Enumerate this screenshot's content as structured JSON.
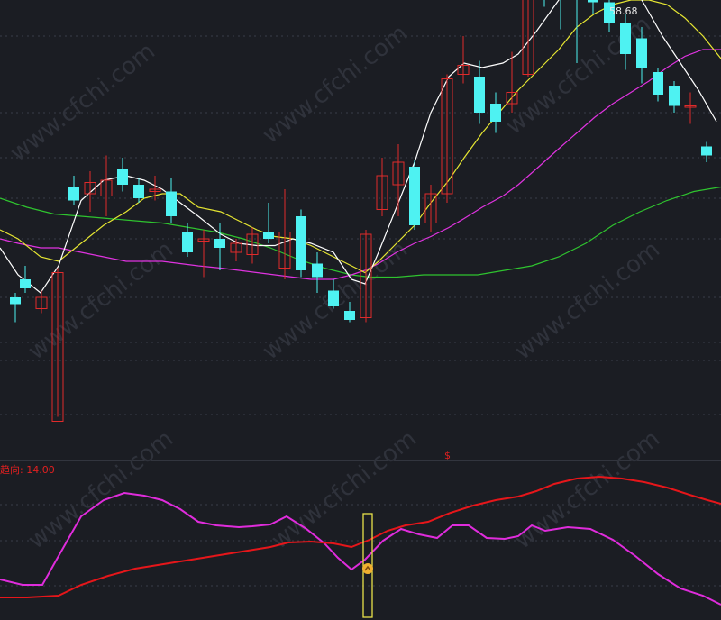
{
  "chart_data": [
    {
      "type": "candlestick",
      "max_label": "58.68",
      "colors": {
        "up": "#e02b2b",
        "down": "#4ef2f2",
        "ma5": "#ffffff",
        "ma10": "#e6e632",
        "ma20": "#e033e0",
        "ma60": "#2fc42f"
      },
      "candles": [
        [
          17,
          20,
          17,
          9,
          22
        ],
        [
          28,
          28,
          24,
          22,
          34
        ],
        [
          46,
          15,
          20,
          13,
          23
        ],
        [
          64,
          -35,
          31,
          -33,
          33
        ],
        [
          82,
          69,
          63,
          61,
          74
        ],
        [
          100,
          66,
          71,
          58,
          76
        ],
        [
          118,
          65,
          72,
          56,
          83
        ],
        [
          136,
          77,
          70,
          67,
          82
        ],
        [
          154,
          70,
          64,
          62,
          73
        ],
        [
          172,
          67,
          68,
          63,
          74
        ],
        [
          190,
          67,
          56,
          53,
          73
        ],
        [
          208,
          49,
          40,
          38,
          53
        ],
        [
          226,
          45,
          46,
          29,
          50
        ],
        [
          244,
          46,
          42,
          32,
          53
        ],
        [
          262,
          40,
          44,
          36,
          46
        ],
        [
          280,
          39,
          48,
          35,
          51
        ],
        [
          298,
          49,
          46,
          44,
          62
        ],
        [
          316,
          33,
          49,
          28,
          68
        ],
        [
          334,
          56,
          32,
          29,
          59
        ],
        [
          352,
          35,
          29,
          22,
          40
        ],
        [
          370,
          23,
          16,
          15,
          28
        ],
        [
          388,
          14,
          10,
          9,
          18
        ],
        [
          406,
          11,
          48,
          9,
          50
        ],
        [
          424,
          59,
          74,
          56,
          82
        ],
        [
          442,
          70,
          80,
          56,
          88
        ],
        [
          460,
          78,
          52,
          50,
          81
        ],
        [
          478,
          53,
          66,
          49,
          70
        ],
        [
          496,
          66,
          117,
          62,
          119
        ],
        [
          514,
          119,
          123,
          115,
          136
        ],
        [
          532,
          118,
          102,
          97,
          125
        ],
        [
          550,
          106,
          98,
          93,
          111
        ],
        [
          568,
          106,
          111,
          102,
          129
        ],
        [
          586,
          119,
          158,
          118,
          163
        ],
        [
          604,
          154,
          152,
          149,
          170
        ],
        [
          622,
          166,
          159,
          139,
          180
        ],
        [
          640,
          153,
          152,
          124,
          159
        ],
        [
          658,
          160,
          151,
          146,
          187
        ],
        [
          676,
          151,
          142,
          138,
          155
        ],
        [
          694,
          142,
          128,
          121,
          146
        ],
        [
          712,
          135,
          122,
          115,
          140
        ],
        [
          730,
          120,
          110,
          107,
          122
        ],
        [
          748,
          114,
          105,
          102,
          116
        ],
        [
          766,
          105,
          105,
          97,
          111
        ],
        [
          784,
          87,
          83,
          80,
          89
        ]
      ],
      "ma5": [
        [
          0,
          42
        ],
        [
          20,
          30
        ],
        [
          45,
          22
        ],
        [
          65,
          34
        ],
        [
          90,
          63
        ],
        [
          115,
          72
        ],
        [
          140,
          74
        ],
        [
          160,
          72
        ],
        [
          180,
          68
        ],
        [
          200,
          62
        ],
        [
          220,
          56
        ],
        [
          245,
          48
        ],
        [
          265,
          44
        ],
        [
          285,
          43
        ],
        [
          305,
          43
        ],
        [
          325,
          46
        ],
        [
          345,
          44
        ],
        [
          370,
          40
        ],
        [
          390,
          28
        ],
        [
          405,
          26
        ],
        [
          420,
          40
        ],
        [
          440,
          60
        ],
        [
          460,
          80
        ],
        [
          478,
          102
        ],
        [
          498,
          118
        ],
        [
          515,
          124
        ],
        [
          535,
          122
        ],
        [
          558,
          124
        ],
        [
          575,
          128
        ],
        [
          595,
          138
        ],
        [
          620,
          152
        ],
        [
          640,
          162
        ],
        [
          660,
          168
        ],
        [
          680,
          166
        ],
        [
          700,
          160
        ],
        [
          715,
          150
        ],
        [
          735,
          136
        ],
        [
          755,
          124
        ],
        [
          775,
          112
        ],
        [
          795,
          98
        ]
      ],
      "ma10": [
        [
          0,
          50
        ],
        [
          20,
          46
        ],
        [
          45,
          38
        ],
        [
          65,
          36
        ],
        [
          90,
          44
        ],
        [
          115,
          52
        ],
        [
          140,
          58
        ],
        [
          160,
          64
        ],
        [
          180,
          66
        ],
        [
          200,
          66
        ],
        [
          220,
          60
        ],
        [
          245,
          58
        ],
        [
          265,
          54
        ],
        [
          285,
          50
        ],
        [
          305,
          47
        ],
        [
          325,
          46
        ],
        [
          345,
          43
        ],
        [
          370,
          38
        ],
        [
          390,
          34
        ],
        [
          405,
          31
        ],
        [
          420,
          36
        ],
        [
          440,
          44
        ],
        [
          460,
          52
        ],
        [
          478,
          62
        ],
        [
          498,
          72
        ],
        [
          515,
          82
        ],
        [
          535,
          93
        ],
        [
          558,
          104
        ],
        [
          575,
          112
        ],
        [
          595,
          120
        ],
        [
          620,
          130
        ],
        [
          640,
          140
        ],
        [
          660,
          146
        ],
        [
          680,
          150
        ],
        [
          700,
          152
        ],
        [
          720,
          152
        ],
        [
          740,
          150
        ],
        [
          760,
          144
        ],
        [
          780,
          136
        ],
        [
          800,
          126
        ]
      ],
      "ma20": [
        [
          0,
          46
        ],
        [
          20,
          44
        ],
        [
          45,
          42
        ],
        [
          65,
          42
        ],
        [
          90,
          40
        ],
        [
          115,
          38
        ],
        [
          140,
          36
        ],
        [
          160,
          36
        ],
        [
          180,
          36
        ],
        [
          200,
          35
        ],
        [
          220,
          34
        ],
        [
          245,
          33
        ],
        [
          265,
          32
        ],
        [
          285,
          31
        ],
        [
          305,
          30
        ],
        [
          325,
          29
        ],
        [
          345,
          28
        ],
        [
          370,
          28
        ],
        [
          390,
          30
        ],
        [
          405,
          32
        ],
        [
          420,
          35
        ],
        [
          440,
          40
        ],
        [
          460,
          44
        ],
        [
          478,
          47
        ],
        [
          498,
          51
        ],
        [
          515,
          55
        ],
        [
          535,
          60
        ],
        [
          558,
          65
        ],
        [
          575,
          70
        ],
        [
          595,
          77
        ],
        [
          620,
          86
        ],
        [
          640,
          93
        ],
        [
          660,
          100
        ],
        [
          680,
          106
        ],
        [
          700,
          111
        ],
        [
          720,
          116
        ],
        [
          740,
          122
        ],
        [
          760,
          127
        ],
        [
          780,
          130
        ],
        [
          800,
          130
        ]
      ],
      "ma60": [
        [
          0,
          64
        ],
        [
          30,
          60
        ],
        [
          60,
          57
        ],
        [
          90,
          56
        ],
        [
          120,
          55
        ],
        [
          150,
          54
        ],
        [
          180,
          53
        ],
        [
          210,
          51
        ],
        [
          240,
          49
        ],
        [
          270,
          46
        ],
        [
          300,
          42
        ],
        [
          330,
          37
        ],
        [
          360,
          33
        ],
        [
          390,
          30
        ],
        [
          410,
          29
        ],
        [
          440,
          29
        ],
        [
          470,
          30
        ],
        [
          500,
          30
        ],
        [
          530,
          30
        ],
        [
          560,
          32
        ],
        [
          590,
          34
        ],
        [
          620,
          38
        ],
        [
          650,
          44
        ],
        [
          680,
          52
        ],
        [
          710,
          58
        ],
        [
          740,
          63
        ],
        [
          770,
          67
        ],
        [
          800,
          69
        ]
      ]
    },
    {
      "type": "line",
      "title": "趋向: 14.00",
      "series": [
        {
          "color": "#e02cdc",
          "values": [
            [
              0,
              12
            ],
            [
              25,
              6
            ],
            [
              47,
              6
            ],
            [
              65,
              38
            ],
            [
              90,
              82
            ],
            [
              115,
              100
            ],
            [
              138,
              108
            ],
            [
              160,
              105
            ],
            [
              180,
              100
            ],
            [
              200,
              90
            ],
            [
              220,
              76
            ],
            [
              240,
              72
            ],
            [
              265,
              70
            ],
            [
              280,
              71
            ],
            [
              300,
              73
            ],
            [
              318,
              82
            ],
            [
              340,
              68
            ],
            [
              360,
              52
            ],
            [
              375,
              36
            ],
            [
              390,
              23
            ],
            [
              405,
              34
            ],
            [
              425,
              55
            ],
            [
              445,
              68
            ],
            [
              465,
              62
            ],
            [
              485,
              58
            ],
            [
              502,
              72
            ],
            [
              520,
              72
            ],
            [
              540,
              58
            ],
            [
              560,
              57
            ],
            [
              575,
              60
            ],
            [
              590,
              72
            ],
            [
              605,
              66
            ],
            [
              630,
              70
            ],
            [
              655,
              68
            ],
            [
              680,
              56
            ],
            [
              705,
              38
            ],
            [
              730,
              18
            ],
            [
              755,
              2
            ],
            [
              780,
              -6
            ],
            [
              800,
              -16
            ]
          ]
        },
        {
          "color": "#e6161a",
          "values": [
            [
              0,
              -8
            ],
            [
              30,
              -8
            ],
            [
              65,
              -6
            ],
            [
              90,
              6
            ],
            [
              120,
              16
            ],
            [
              150,
              24
            ],
            [
              175,
              28
            ],
            [
              200,
              32
            ],
            [
              225,
              36
            ],
            [
              250,
              40
            ],
            [
              275,
              44
            ],
            [
              300,
              48
            ],
            [
              320,
              53
            ],
            [
              345,
              54
            ],
            [
              370,
              52
            ],
            [
              390,
              48
            ],
            [
              410,
              56
            ],
            [
              430,
              66
            ],
            [
              450,
              72
            ],
            [
              475,
              76
            ],
            [
              500,
              86
            ],
            [
              525,
              94
            ],
            [
              550,
              100
            ],
            [
              575,
              104
            ],
            [
              595,
              110
            ],
            [
              615,
              118
            ],
            [
              640,
              124
            ],
            [
              665,
              126
            ],
            [
              690,
              124
            ],
            [
              715,
              120
            ],
            [
              740,
              114
            ],
            [
              765,
              106
            ],
            [
              785,
              100
            ],
            [
              800,
              96
            ]
          ]
        }
      ],
      "signal": {
        "x": 408,
        "marker_color": "#f0b030",
        "box_color": "#e8e24a"
      }
    }
  ],
  "badge": "$"
}
